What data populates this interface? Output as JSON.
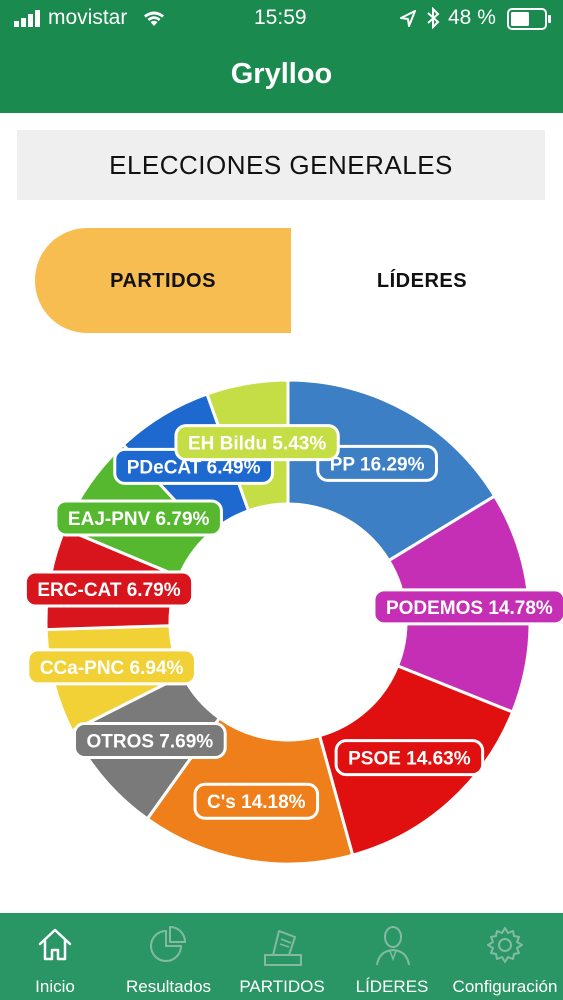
{
  "status_bar": {
    "carrier": "movistar",
    "time": "15:59",
    "battery": "48 %"
  },
  "nav": {
    "title": "Grylloo"
  },
  "section": {
    "title": "ELECCIONES GENERALES"
  },
  "tabs": [
    {
      "label": "PARTIDOS",
      "selected": true
    },
    {
      "label": "LÍDERES",
      "selected": false
    }
  ],
  "chart_data": {
    "type": "pie",
    "title": "",
    "series": [
      {
        "label": "PP 16.29%",
        "value": 16.29,
        "color": "#3c7fc4"
      },
      {
        "label": "PODEMOS 14.78%",
        "value": 14.78,
        "color": "#c52fb6"
      },
      {
        "label": "PSOE 14.63%",
        "value": 14.63,
        "color": "#e01010"
      },
      {
        "label": "C's 14.18%",
        "value": 14.18,
        "color": "#ee7f1a"
      },
      {
        "label": "OTROS 7.69%",
        "value": 7.69,
        "color": "#7a7a7a"
      },
      {
        "label": "CCa-PNC 6.94%",
        "value": 6.94,
        "color": "#f2d137"
      },
      {
        "label": "ERC-CAT 6.79%",
        "value": 6.79,
        "color": "#d8141c"
      },
      {
        "label": "EAJ-PNV 6.79%",
        "value": 6.79,
        "color": "#55b82e"
      },
      {
        "label": "PDeCAT 6.49%",
        "value": 6.49,
        "color": "#1d69cf"
      },
      {
        "label": "EH Bildu 5.43%",
        "value": 5.43,
        "color": "#c6de46"
      }
    ]
  },
  "tab_bar": {
    "items": [
      {
        "label": "Inicio",
        "icon": "home-icon"
      },
      {
        "label": "Resultados",
        "icon": "pie-chart-icon"
      },
      {
        "label": "PARTIDOS",
        "icon": "ballot-icon"
      },
      {
        "label": "LÍDERES",
        "icon": "person-icon"
      },
      {
        "label": "Configuración",
        "icon": "gear-icon"
      }
    ]
  }
}
